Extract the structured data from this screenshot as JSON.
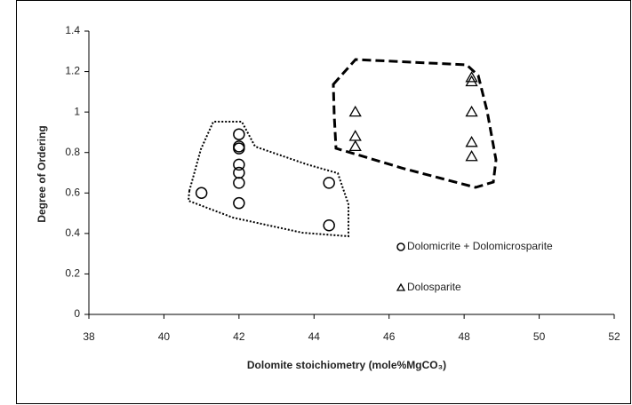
{
  "chart_data": {
    "type": "scatter",
    "xlabel": "Dolomite stoichiometry (mole%MgCO₃)",
    "ylabel": "Degree of Ordering",
    "xlim": [
      38,
      52
    ],
    "xticks": [
      38,
      40,
      42,
      44,
      46,
      48,
      50,
      52
    ],
    "ylim": [
      0,
      1.4
    ],
    "yticks": [
      0,
      0.2,
      0.4,
      0.6,
      0.8,
      1,
      1.2,
      1.4
    ],
    "series": [
      {
        "name": "Dolomicrite + Dolomicrosparite",
        "color": "#000000",
        "marker": "circle",
        "x": [
          41,
          42,
          42,
          42,
          42,
          42,
          42,
          42,
          44.4,
          44.4
        ],
        "values": [
          0.6,
          0.89,
          0.83,
          0.82,
          0.74,
          0.7,
          0.65,
          0.55,
          0.65,
          0.44
        ]
      },
      {
        "name": "Dolosparite",
        "color": "#000000",
        "marker": "triangle",
        "x": [
          45.1,
          45.1,
          45.1,
          48.2,
          48.2,
          48.2,
          48.2,
          48.2
        ],
        "values": [
          1.0,
          0.88,
          0.83,
          1.17,
          1.15,
          1.0,
          0.85,
          0.78
        ]
      }
    ]
  }
}
